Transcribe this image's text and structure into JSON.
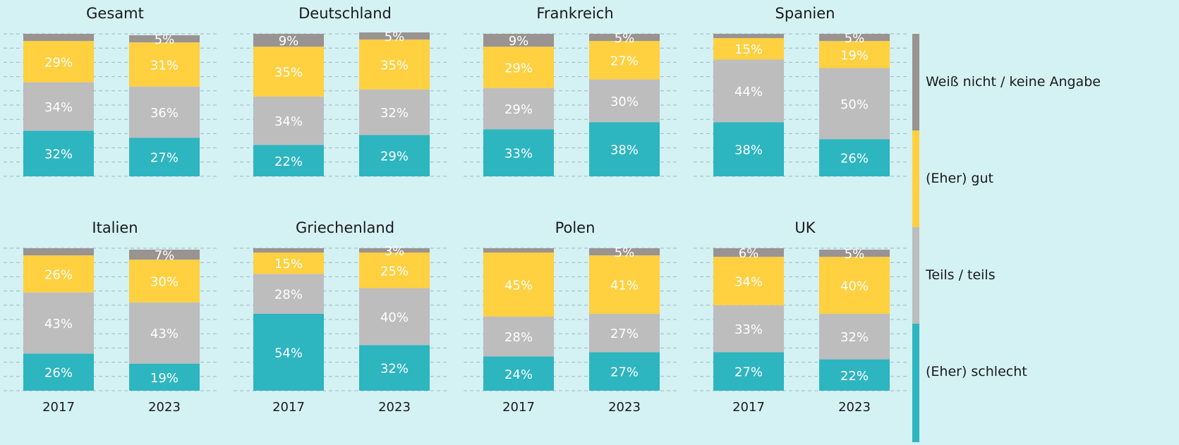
{
  "chart_data": [
    {
      "type": "stacked-bar",
      "title": "Gesamt",
      "ylim": [
        0,
        100
      ],
      "yticks": [
        0,
        10,
        20,
        30,
        40,
        50,
        60,
        70,
        80,
        90,
        100
      ],
      "grid": true,
      "series": [
        {
          "name": "(Eher) schlecht",
          "color": "#2db5c0",
          "values": [
            32,
            27
          ],
          "value_labels": [
            "32%",
            "27%"
          ]
        },
        {
          "name": "Teils / teils",
          "color": "#bdbdbd",
          "values": [
            34,
            36
          ],
          "value_labels": [
            "34%",
            "36%"
          ]
        },
        {
          "name": "(Eher) gut",
          "color": "#ffd040",
          "values": [
            29,
            31
          ],
          "value_labels": [
            "29%",
            "31%"
          ]
        },
        {
          "name": "Weiß nicht / keine Angabe",
          "color": "#999391",
          "values": [
            5,
            5
          ],
          "value_labels": [
            null,
            "5%"
          ]
        }
      ]
    },
    {
      "type": "stacked-bar",
      "title": "Deutschland",
      "ylim": [
        0,
        100
      ],
      "yticks": [
        0,
        10,
        20,
        30,
        40,
        50,
        60,
        70,
        80,
        90,
        100
      ],
      "grid": true,
      "series": [
        {
          "name": "(Eher) schlecht",
          "color": "#2db5c0",
          "values": [
            22,
            29
          ],
          "value_labels": [
            "22%",
            "29%"
          ]
        },
        {
          "name": "Teils / teils",
          "color": "#bdbdbd",
          "values": [
            34,
            32
          ],
          "value_labels": [
            "34%",
            "32%"
          ]
        },
        {
          "name": "(Eher) gut",
          "color": "#ffd040",
          "values": [
            35,
            35
          ],
          "value_labels": [
            "35%",
            "35%"
          ]
        },
        {
          "name": "Weiß nicht / keine Angabe",
          "color": "#999391",
          "values": [
            9,
            5
          ],
          "value_labels": [
            "9%",
            "5%"
          ]
        }
      ]
    },
    {
      "type": "stacked-bar",
      "title": "Frankreich",
      "ylim": [
        0,
        100
      ],
      "yticks": [
        0,
        10,
        20,
        30,
        40,
        50,
        60,
        70,
        80,
        90,
        100
      ],
      "grid": true,
      "series": [
        {
          "name": "(Eher) schlecht",
          "color": "#2db5c0",
          "values": [
            33,
            38
          ],
          "value_labels": [
            "33%",
            "38%"
          ]
        },
        {
          "name": "Teils / teils",
          "color": "#bdbdbd",
          "values": [
            29,
            30
          ],
          "value_labels": [
            "29%",
            "30%"
          ]
        },
        {
          "name": "(Eher) gut",
          "color": "#ffd040",
          "values": [
            29,
            27
          ],
          "value_labels": [
            "29%",
            "27%"
          ]
        },
        {
          "name": "Weiß nicht / keine Angabe",
          "color": "#999391",
          "values": [
            9,
            5
          ],
          "value_labels": [
            "9%",
            "5%"
          ]
        }
      ]
    },
    {
      "type": "stacked-bar",
      "title": "Spanien",
      "ylim": [
        0,
        100
      ],
      "yticks": [
        0,
        10,
        20,
        30,
        40,
        50,
        60,
        70,
        80,
        90,
        100
      ],
      "grid": true,
      "series": [
        {
          "name": "(Eher) schlecht",
          "color": "#2db5c0",
          "values": [
            38,
            26
          ],
          "value_labels": [
            "38%",
            "26%"
          ]
        },
        {
          "name": "Teils / teils",
          "color": "#bdbdbd",
          "values": [
            44,
            50
          ],
          "value_labels": [
            "44%",
            "50%"
          ]
        },
        {
          "name": "(Eher) gut",
          "color": "#ffd040",
          "values": [
            15,
            19
          ],
          "value_labels": [
            "15%",
            "19%"
          ]
        },
        {
          "name": "Weiß nicht / keine Angabe",
          "color": "#999391",
          "values": [
            3,
            5
          ],
          "value_labels": [
            null,
            "5%"
          ]
        }
      ]
    },
    {
      "type": "stacked-bar",
      "title": "Italien",
      "categories": [
        "2017",
        "2023"
      ],
      "ylim": [
        0,
        100
      ],
      "yticks": [
        0,
        10,
        20,
        30,
        40,
        50,
        60,
        70,
        80,
        90,
        100
      ],
      "grid": true,
      "series": [
        {
          "name": "(Eher) schlecht",
          "color": "#2db5c0",
          "values": [
            26,
            19
          ],
          "value_labels": [
            "26%",
            "19%"
          ]
        },
        {
          "name": "Teils / teils",
          "color": "#bdbdbd",
          "values": [
            43,
            43
          ],
          "value_labels": [
            "43%",
            "43%"
          ]
        },
        {
          "name": "(Eher) gut",
          "color": "#ffd040",
          "values": [
            26,
            30
          ],
          "value_labels": [
            "26%",
            "30%"
          ]
        },
        {
          "name": "Weiß nicht / keine Angabe",
          "color": "#999391",
          "values": [
            5,
            7
          ],
          "value_labels": [
            null,
            "7%"
          ]
        }
      ]
    },
    {
      "type": "stacked-bar",
      "title": "Griechenland",
      "categories": [
        "2017",
        "2023"
      ],
      "ylim": [
        0,
        100
      ],
      "yticks": [
        0,
        10,
        20,
        30,
        40,
        50,
        60,
        70,
        80,
        90,
        100
      ],
      "grid": true,
      "series": [
        {
          "name": "(Eher) schlecht",
          "color": "#2db5c0",
          "values": [
            54,
            32
          ],
          "value_labels": [
            "54%",
            "32%"
          ]
        },
        {
          "name": "Teils / teils",
          "color": "#bdbdbd",
          "values": [
            28,
            40
          ],
          "value_labels": [
            "28%",
            "40%"
          ]
        },
        {
          "name": "(Eher) gut",
          "color": "#ffd040",
          "values": [
            15,
            25
          ],
          "value_labels": [
            "15%",
            "25%"
          ]
        },
        {
          "name": "Weiß nicht / keine Angabe",
          "color": "#999391",
          "values": [
            3,
            3
          ],
          "value_labels": [
            null,
            "3%"
          ]
        }
      ]
    },
    {
      "type": "stacked-bar",
      "title": "Polen",
      "categories": [
        "2017",
        "2023"
      ],
      "ylim": [
        0,
        100
      ],
      "yticks": [
        0,
        10,
        20,
        30,
        40,
        50,
        60,
        70,
        80,
        90,
        100
      ],
      "grid": true,
      "series": [
        {
          "name": "(Eher) schlecht",
          "color": "#2db5c0",
          "values": [
            24,
            27
          ],
          "value_labels": [
            "24%",
            "27%"
          ]
        },
        {
          "name": "Teils / teils",
          "color": "#bdbdbd",
          "values": [
            28,
            27
          ],
          "value_labels": [
            "28%",
            "27%"
          ]
        },
        {
          "name": "(Eher) gut",
          "color": "#ffd040",
          "values": [
            45,
            41
          ],
          "value_labels": [
            "45%",
            "41%"
          ]
        },
        {
          "name": "Weiß nicht / keine Angabe",
          "color": "#999391",
          "values": [
            3,
            5
          ],
          "value_labels": [
            null,
            "5%"
          ]
        }
      ]
    },
    {
      "type": "stacked-bar",
      "title": "UK",
      "categories": [
        "2017",
        "2023"
      ],
      "ylim": [
        0,
        100
      ],
      "yticks": [
        0,
        10,
        20,
        30,
        40,
        50,
        60,
        70,
        80,
        90,
        100
      ],
      "grid": true,
      "series": [
        {
          "name": "(Eher) schlecht",
          "color": "#2db5c0",
          "values": [
            27,
            22
          ],
          "value_labels": [
            "27%",
            "22%"
          ]
        },
        {
          "name": "Teils / teils",
          "color": "#bdbdbd",
          "values": [
            33,
            32
          ],
          "value_labels": [
            "33%",
            "32%"
          ]
        },
        {
          "name": "(Eher) gut",
          "color": "#ffd040",
          "values": [
            34,
            40
          ],
          "value_labels": [
            "34%",
            "40%"
          ]
        },
        {
          "name": "Weiß nicht / keine Angabe",
          "color": "#999391",
          "values": [
            6,
            5
          ],
          "value_labels": [
            "6%",
            "5%"
          ]
        }
      ]
    }
  ]
}
